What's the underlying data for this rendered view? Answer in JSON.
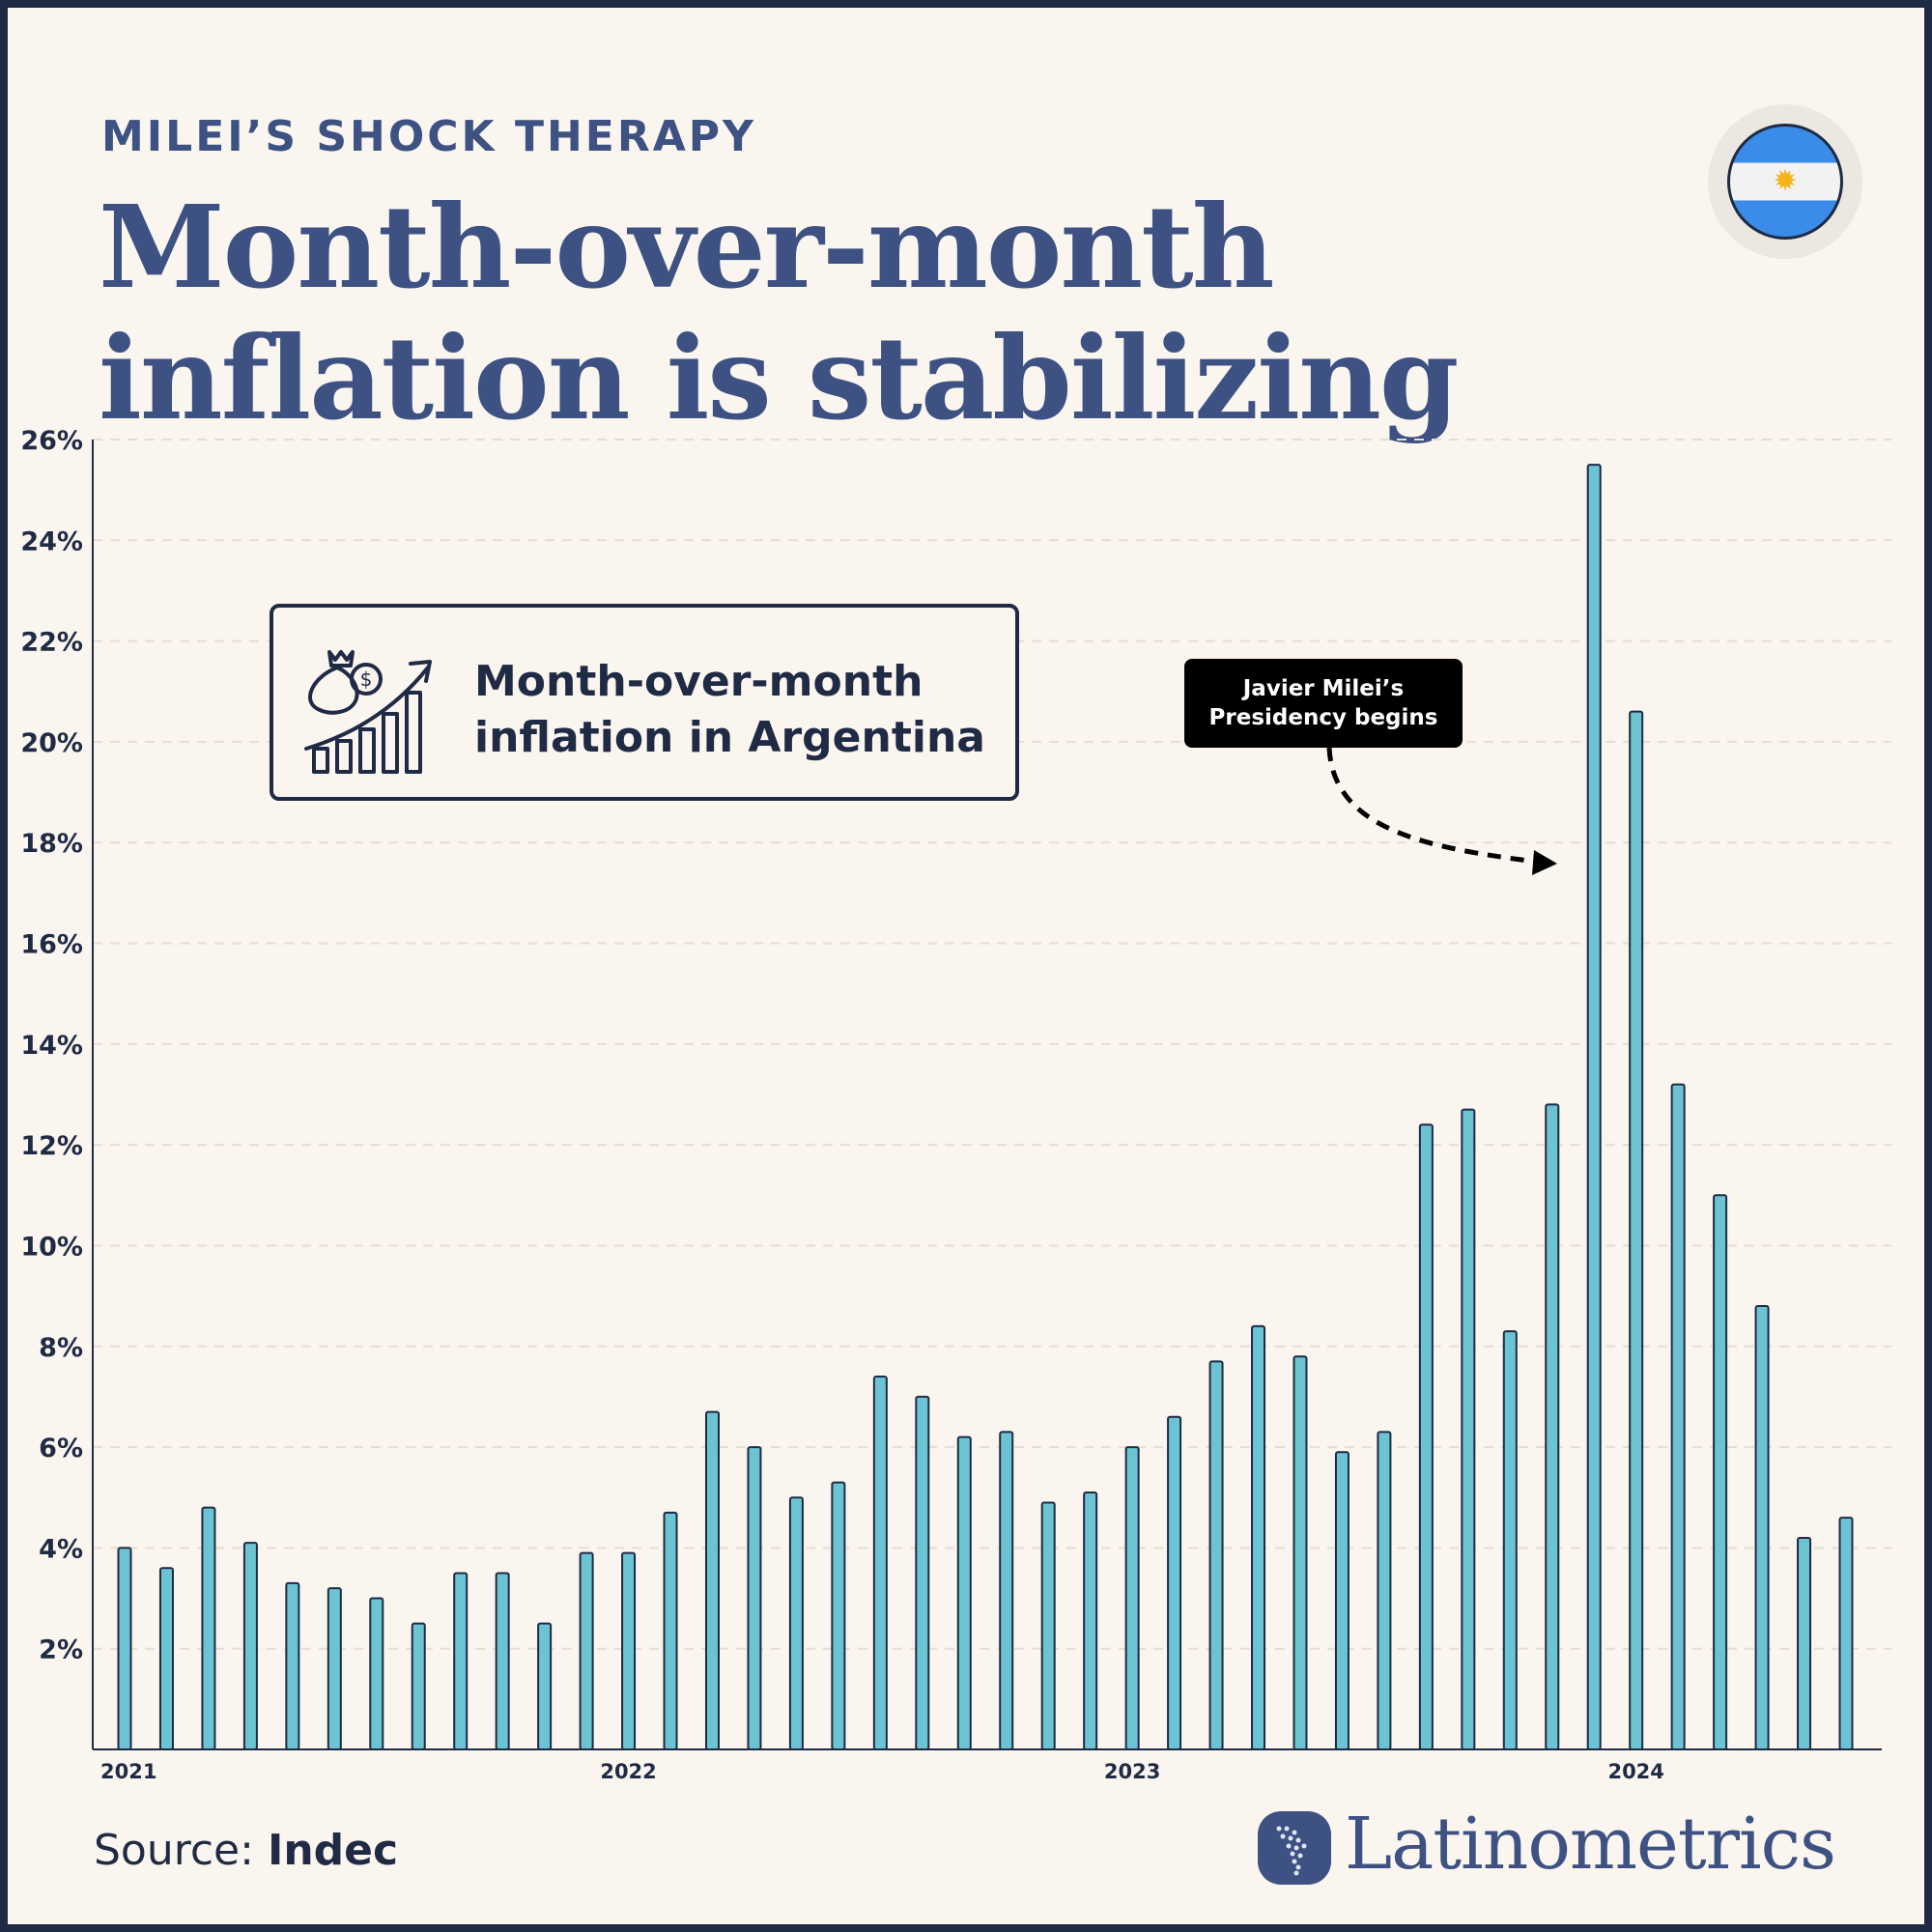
{
  "header": {
    "kicker": "MILEI’S SHOCK THERAPY",
    "title_line1": "Month-over-month",
    "title_line2": "inflation is stabilizing"
  },
  "flag": {
    "country": "Argentina",
    "icon": "argentina-flag-icon"
  },
  "legend": {
    "line1": "Month-over-month",
    "line2": "inflation in Argentina",
    "icon": "money-growth-chart-icon"
  },
  "annotation": {
    "line1": "Javier Milei’s",
    "line2": "Presidency begins",
    "target_month_index": 35
  },
  "footer": {
    "source_label": "Source:",
    "source_name": "Indec",
    "brand": "Latinometrics"
  },
  "colors": {
    "bar_fill": "#6cc4d3",
    "bar_stroke": "#1f2a44",
    "title": "#3d5283",
    "background": "#fbf5ef",
    "frame": "#1f2a44"
  },
  "chart_data": {
    "type": "bar",
    "title": "Month-over-month inflation in Argentina",
    "ylim": [
      0,
      26
    ],
    "yticks": [
      2,
      4,
      6,
      8,
      10,
      12,
      14,
      16,
      18,
      20,
      22,
      24,
      26
    ],
    "ytick_labels": [
      "2%",
      "4%",
      "6%",
      "8%",
      "10%",
      "12%",
      "14%",
      "16%",
      "18%",
      "20%",
      "22%",
      "24%",
      "26%"
    ],
    "grid": true,
    "xtick_labels": [
      {
        "index": 0,
        "label": "2021"
      },
      {
        "index": 12,
        "label": "2022"
      },
      {
        "index": 24,
        "label": "2023"
      },
      {
        "index": 36,
        "label": "2024"
      }
    ],
    "categories": [
      "2021-01",
      "2021-02",
      "2021-03",
      "2021-04",
      "2021-05",
      "2021-06",
      "2021-07",
      "2021-08",
      "2021-09",
      "2021-10",
      "2021-11",
      "2021-12",
      "2022-01",
      "2022-02",
      "2022-03",
      "2022-04",
      "2022-05",
      "2022-06",
      "2022-07",
      "2022-08",
      "2022-09",
      "2022-10",
      "2022-11",
      "2022-12",
      "2023-01",
      "2023-02",
      "2023-03",
      "2023-04",
      "2023-05",
      "2023-06",
      "2023-07",
      "2023-08",
      "2023-09",
      "2023-10",
      "2023-11",
      "2023-12",
      "2024-01",
      "2024-02",
      "2024-03",
      "2024-04",
      "2024-05",
      "2024-06"
    ],
    "values": [
      4.0,
      3.6,
      4.8,
      4.1,
      3.3,
      3.2,
      3.0,
      2.5,
      3.5,
      3.5,
      2.5,
      3.9,
      3.9,
      4.7,
      6.7,
      6.0,
      5.0,
      5.3,
      7.4,
      7.0,
      6.2,
      6.3,
      4.9,
      5.1,
      6.0,
      6.6,
      7.7,
      8.4,
      7.8,
      5.9,
      6.3,
      12.4,
      12.7,
      8.3,
      12.8,
      25.5,
      20.6,
      13.2,
      11.0,
      8.8,
      4.2,
      4.6
    ]
  }
}
